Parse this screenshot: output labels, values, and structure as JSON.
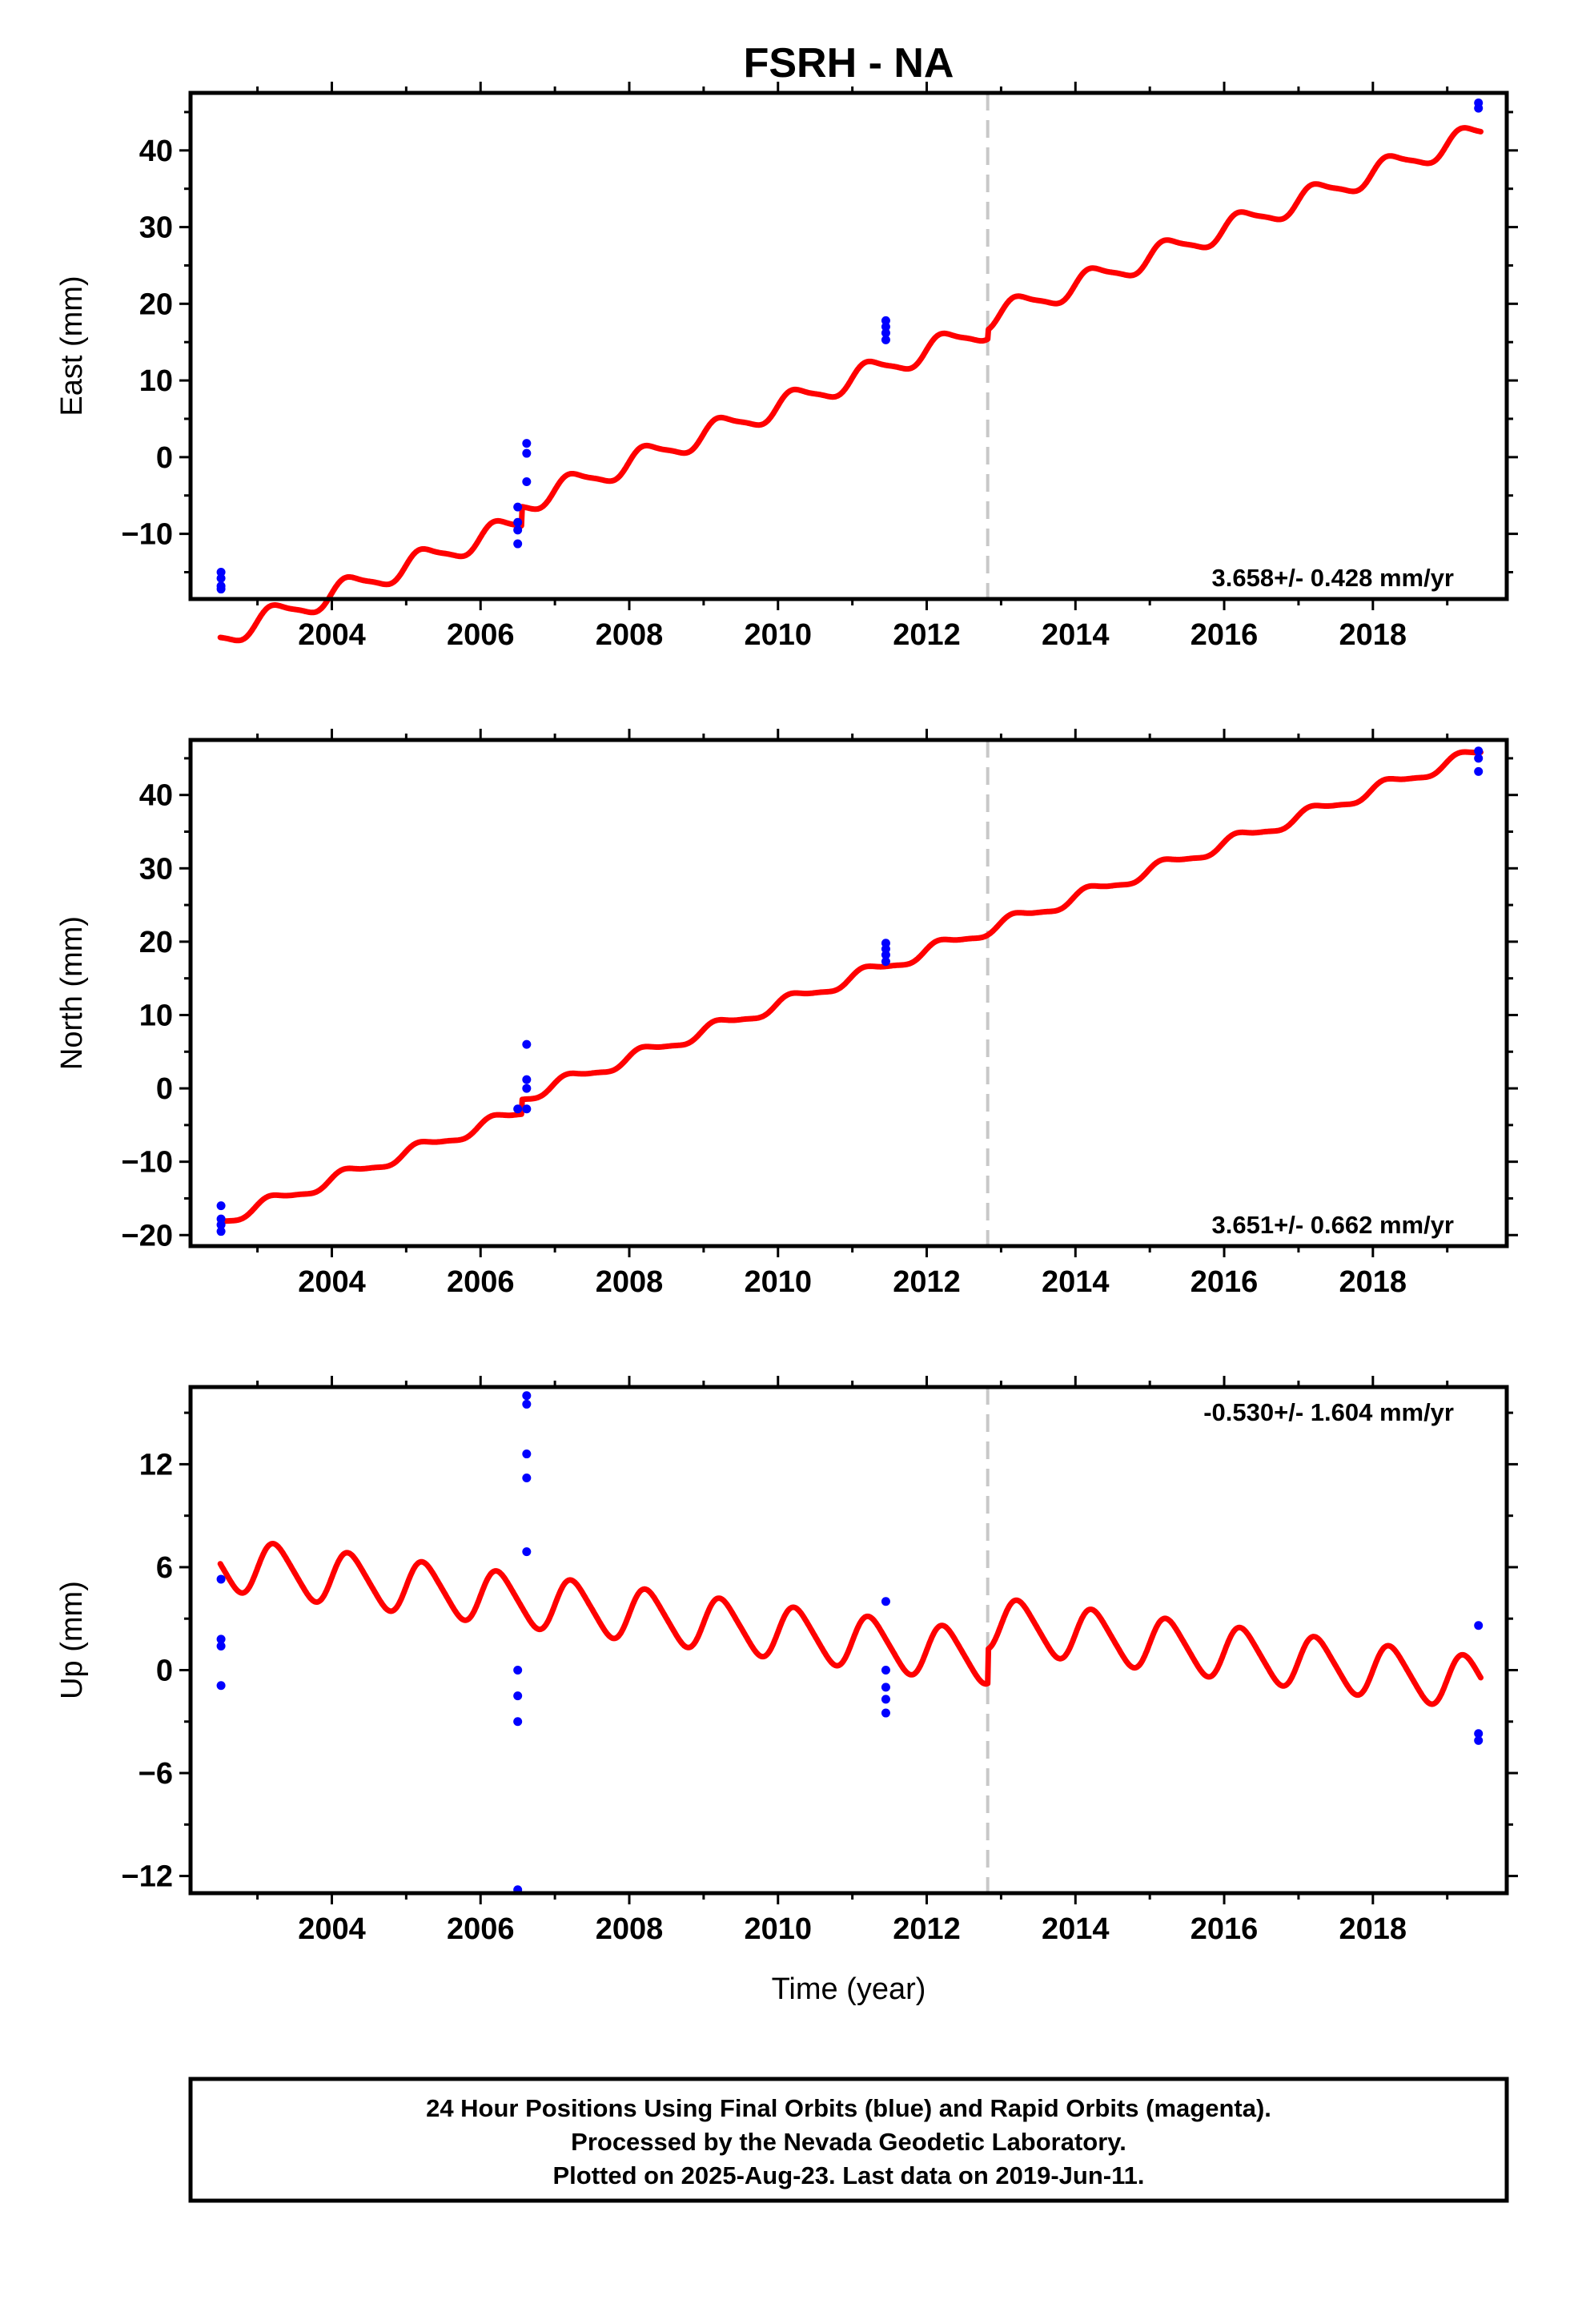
{
  "title": "FSRH - NA",
  "xlabel": "Time (year)",
  "footer": {
    "line1": "24 Hour Positions Using Final Orbits (blue) and Rapid Orbits (magenta).",
    "line2": "Processed by the Nevada Geodetic Laboratory.",
    "line3": "Plotted on 2025-Aug-23. Last data on 2019-Jun-11."
  },
  "colors": {
    "model": "#ff0000",
    "final_orbits": "#0000ff",
    "rapid_orbits": "#ff00ff",
    "equipment_change": "#c8c8c8",
    "frame": "#000000"
  },
  "chart_data": [
    {
      "type": "scatter",
      "panel": "east",
      "ylabel": "East (mm)",
      "rate_label": "3.658+/- 0.428 mm/yr",
      "rate_position": "bottom-right",
      "xlim": [
        2002.1,
        2019.8
      ],
      "ylim": [
        -18.5,
        47.5
      ],
      "xticks": [
        2004,
        2006,
        2008,
        2010,
        2012,
        2014,
        2016,
        2018
      ],
      "yticks": [
        -10,
        0,
        10,
        20,
        30,
        40
      ],
      "ytick_labels": [
        "−10",
        "0",
        "10",
        "20",
        "30",
        "40"
      ],
      "equipment_change_year": 2012.82,
      "model": {
        "offset": -23.4,
        "rate": 3.658,
        "annual_amp": 1.4,
        "annual_phase": 0.1,
        "semiannual_amp": 0.3,
        "t0": 2002.5,
        "breaks": [
          {
            "t": 2006.55,
            "jump": 2.5
          },
          {
            "t": 2012.82,
            "jump": 1.2
          }
        ],
        "t_start": 2002.5,
        "t_end": 2019.45
      },
      "points": [
        {
          "x": 2002.51,
          "y": -15.0
        },
        {
          "x": 2002.51,
          "y": -15.8
        },
        {
          "x": 2002.51,
          "y": -16.8
        },
        {
          "x": 2002.51,
          "y": -17.2
        },
        {
          "x": 2006.5,
          "y": -6.5
        },
        {
          "x": 2006.5,
          "y": -8.5
        },
        {
          "x": 2006.5,
          "y": -9.5
        },
        {
          "x": 2006.5,
          "y": -11.3
        },
        {
          "x": 2006.62,
          "y": 1.8
        },
        {
          "x": 2006.62,
          "y": 0.5
        },
        {
          "x": 2006.62,
          "y": -3.2
        },
        {
          "x": 2011.45,
          "y": 17.8
        },
        {
          "x": 2011.45,
          "y": 17.0
        },
        {
          "x": 2011.45,
          "y": 16.2
        },
        {
          "x": 2011.45,
          "y": 15.3
        },
        {
          "x": 2019.42,
          "y": 46.2
        },
        {
          "x": 2019.42,
          "y": 45.5
        }
      ]
    },
    {
      "type": "scatter",
      "panel": "north",
      "ylabel": "North (mm)",
      "rate_label": "3.651+/- 0.662 mm/yr",
      "rate_position": "bottom-right",
      "xlim": [
        2002.1,
        2019.8
      ],
      "ylim": [
        -21.5,
        47.5
      ],
      "xticks": [
        2004,
        2006,
        2008,
        2010,
        2012,
        2014,
        2016,
        2018
      ],
      "yticks": [
        -20,
        -10,
        0,
        10,
        20,
        30,
        40
      ],
      "ytick_labels": [
        "−20",
        "−10",
        "0",
        "10",
        "20",
        "30",
        "40"
      ],
      "equipment_change_year": 2012.82,
      "model": {
        "offset": -18.0,
        "rate": 3.651,
        "annual_amp": 0.8,
        "annual_phase": 0.3,
        "semiannual_amp": 0.2,
        "t0": 2002.5,
        "breaks": [
          {
            "t": 2006.55,
            "jump": 2.0
          },
          {
            "t": 2012.82,
            "jump": 0.0
          }
        ],
        "t_start": 2002.5,
        "t_end": 2019.45
      },
      "points": [
        {
          "x": 2002.51,
          "y": -16.0
        },
        {
          "x": 2002.51,
          "y": -17.8
        },
        {
          "x": 2002.51,
          "y": -18.6
        },
        {
          "x": 2002.51,
          "y": -19.5
        },
        {
          "x": 2006.5,
          "y": -2.8
        },
        {
          "x": 2006.62,
          "y": 6.0
        },
        {
          "x": 2006.62,
          "y": 1.2
        },
        {
          "x": 2006.62,
          "y": 0.0
        },
        {
          "x": 2006.62,
          "y": -2.8
        },
        {
          "x": 2011.45,
          "y": 19.8
        },
        {
          "x": 2011.45,
          "y": 19.0
        },
        {
          "x": 2011.45,
          "y": 18.2
        },
        {
          "x": 2011.45,
          "y": 17.3
        },
        {
          "x": 2019.42,
          "y": 46.0
        },
        {
          "x": 2019.42,
          "y": 45.0
        },
        {
          "x": 2019.42,
          "y": 43.2
        }
      ]
    },
    {
      "type": "scatter",
      "panel": "up",
      "ylabel": "Up (mm)",
      "rate_label": "-0.530+/- 1.604 mm/yr",
      "rate_position": "top-right",
      "xlim": [
        2002.1,
        2019.8
      ],
      "ylim": [
        -13.0,
        16.5
      ],
      "xticks": [
        2004,
        2006,
        2008,
        2010,
        2012,
        2014,
        2016,
        2018
      ],
      "yticks": [
        -12,
        -6,
        0,
        6,
        12
      ],
      "ytick_labels": [
        "−12",
        "−6",
        "0",
        "6",
        "12"
      ],
      "equipment_change_year": 2012.82,
      "model": {
        "offset": 6.2,
        "rate": -0.53,
        "annual_amp": 1.5,
        "annual_phase": 0.0,
        "semiannual_amp": 0.2,
        "t0": 2002.5,
        "breaks": [
          {
            "t": 2012.82,
            "jump": 2.0
          }
        ],
        "t_start": 2002.5,
        "t_end": 2019.45
      },
      "points": [
        {
          "x": 2002.51,
          "y": 5.3
        },
        {
          "x": 2002.51,
          "y": 1.8
        },
        {
          "x": 2002.51,
          "y": 1.4
        },
        {
          "x": 2002.51,
          "y": -0.9
        },
        {
          "x": 2006.5,
          "y": 0.0
        },
        {
          "x": 2006.5,
          "y": -1.5
        },
        {
          "x": 2006.5,
          "y": -3.0
        },
        {
          "x": 2006.5,
          "y": -12.8
        },
        {
          "x": 2006.62,
          "y": 16.0
        },
        {
          "x": 2006.62,
          "y": 15.5
        },
        {
          "x": 2006.62,
          "y": 12.6
        },
        {
          "x": 2006.62,
          "y": 11.2
        },
        {
          "x": 2006.62,
          "y": 6.9
        },
        {
          "x": 2011.45,
          "y": 4.0
        },
        {
          "x": 2011.45,
          "y": 0.0
        },
        {
          "x": 2011.45,
          "y": -1.0
        },
        {
          "x": 2011.45,
          "y": -1.7
        },
        {
          "x": 2011.45,
          "y": -2.5
        },
        {
          "x": 2019.42,
          "y": 2.6
        },
        {
          "x": 2019.42,
          "y": -3.7
        },
        {
          "x": 2019.42,
          "y": -4.1
        }
      ]
    }
  ]
}
